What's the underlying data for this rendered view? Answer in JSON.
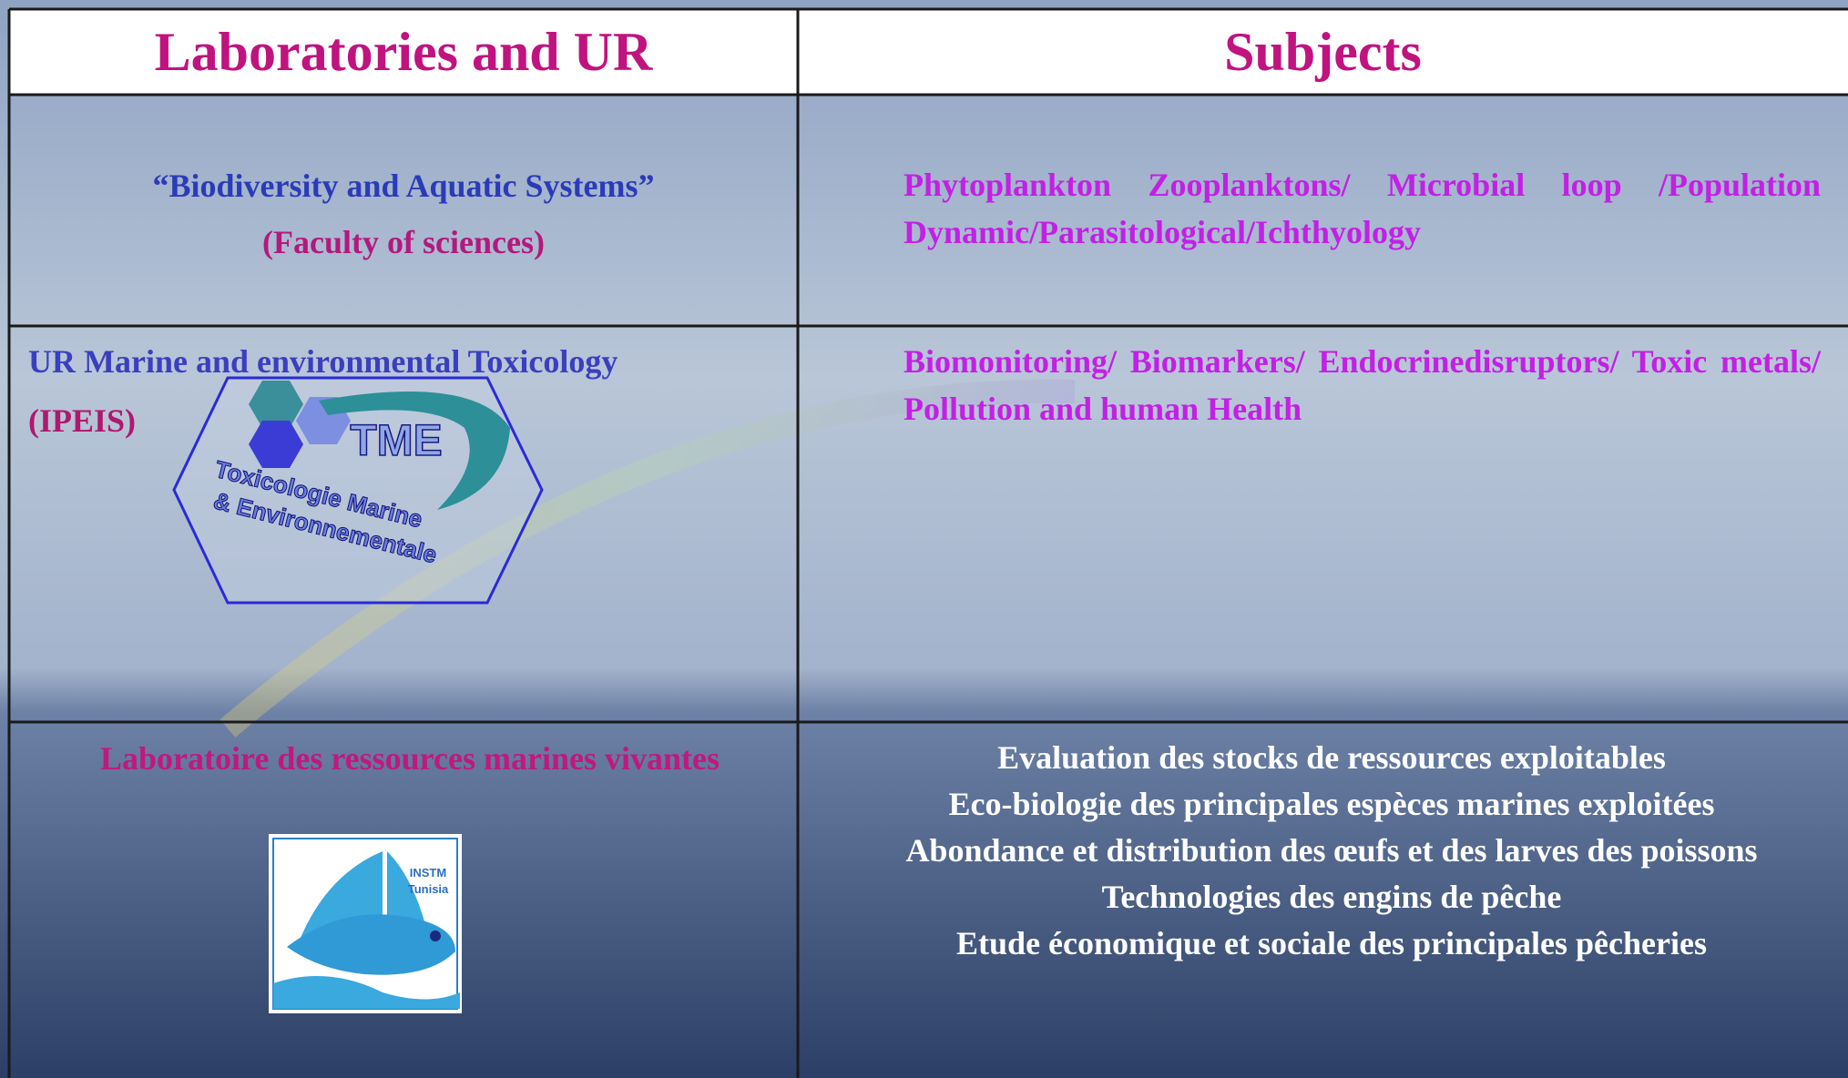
{
  "table": {
    "header": [
      "Laboratories and UR",
      "Subjects"
    ],
    "rows": [
      {
        "lab": [
          "“Biodiversity and Aquatic Systems”",
          "(Faculty of sciences)"
        ],
        "subjects": [
          "Phytoplankton Zooplanktons/ Microbial loop /Population Dynamic/Parasitological/Ichthyology"
        ]
      },
      {
        "lab": [
          "UR Marine and environmental Toxicology",
          "(IPEIS)"
        ],
        "subjects": [
          "Biomonitoring/ Biomarkers/ Endocrinedisruptors/ Toxic metals/ Pollution and human Health"
        ]
      },
      {
        "lab": [
          "Laboratoire des ressources marines vivantes"
        ],
        "subjects": [
          "Evaluation des stocks de ressources exploitables",
          "Eco-biologie des principales espèces marines exploitées",
          "Abondance et distribution des œufs et des larves des poissons",
          "Technologies des engins de pêche",
          "Etude économique et sociale des principales pêcheries"
        ]
      }
    ]
  },
  "logos": {
    "tme": {
      "acronym": "TME",
      "line1": "Toxicologie Marine",
      "line2": "& Environnementale"
    },
    "instm": {
      "line1": "INSTM",
      "line2": "Tunisia"
    }
  }
}
